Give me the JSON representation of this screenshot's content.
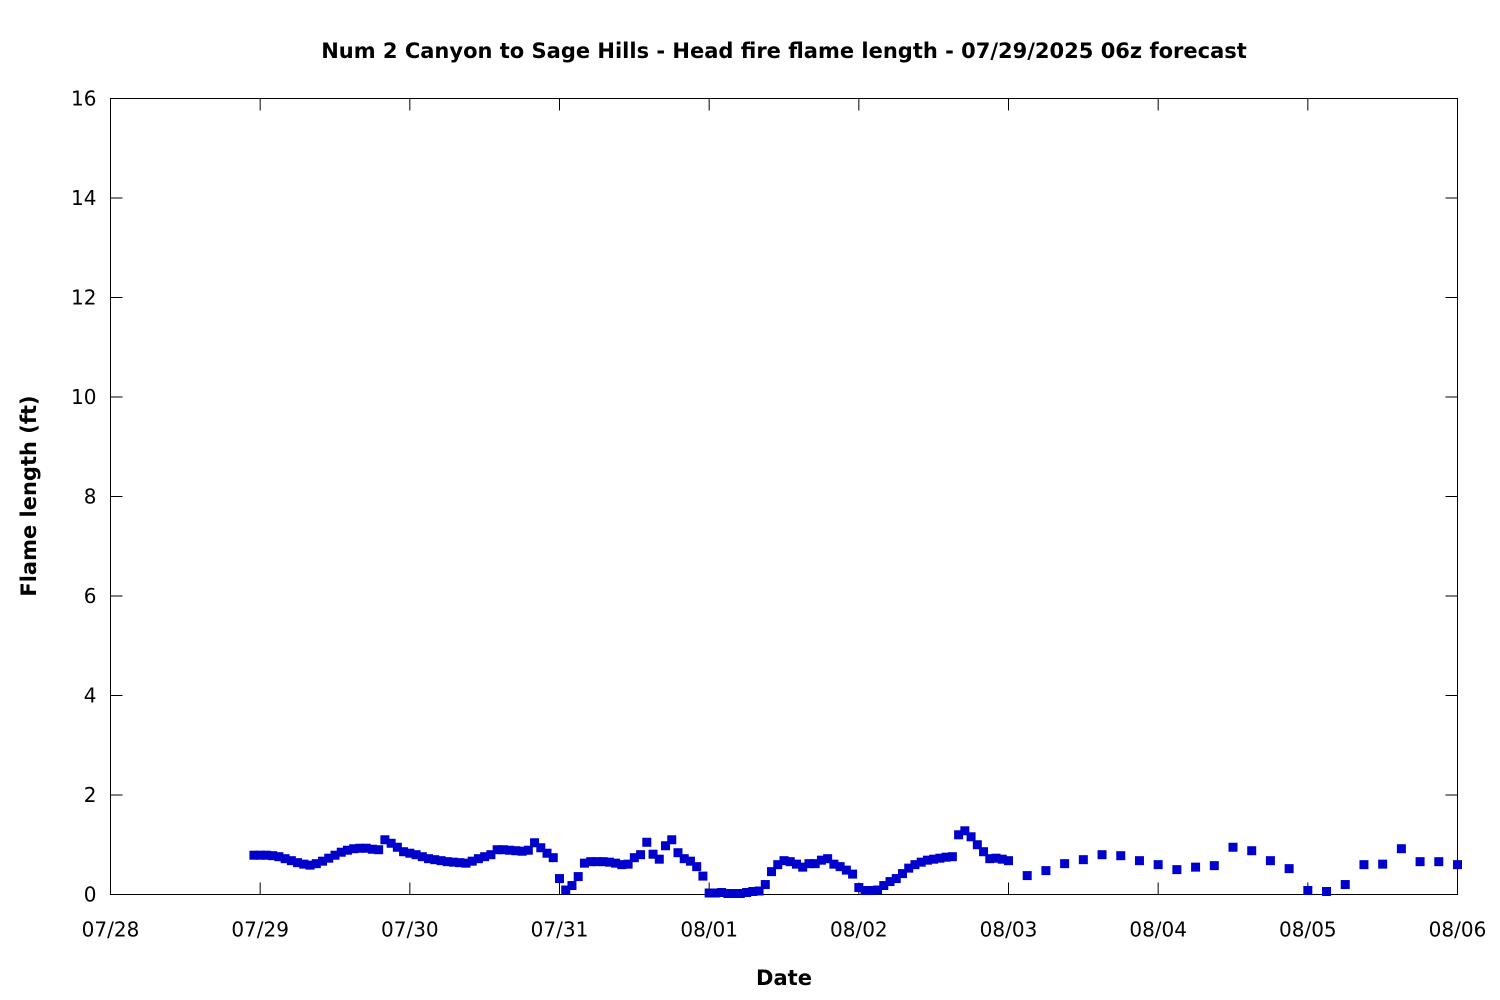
{
  "chart_data": {
    "type": "scatter",
    "title": "Num 2 Canyon to Sage Hills - Head fire flame length - 07/29/2025 06z forecast",
    "xlabel": "Date",
    "ylabel": "Flame length (ft)",
    "ylim": [
      0,
      16
    ],
    "yticks": [
      "0",
      "2",
      "4",
      "6",
      "8",
      "10",
      "12",
      "14",
      "16"
    ],
    "xlim": [
      "2025-07-28T00:00",
      "2025-08-06T00:00"
    ],
    "xticks": [
      "07/28",
      "07/29",
      "07/30",
      "07/31",
      "08/01",
      "08/02",
      "08/03",
      "08/04",
      "08/05",
      "08/06"
    ],
    "grid": false,
    "marker_color": "#0000cc",
    "series": [
      {
        "points": [
          [
            "2025-07-28T23:00",
            0.79
          ],
          [
            "2025-07-29T00:00",
            0.79
          ],
          [
            "2025-07-29T01:00",
            0.79
          ],
          [
            "2025-07-29T02:00",
            0.78
          ],
          [
            "2025-07-29T03:00",
            0.76
          ],
          [
            "2025-07-29T04:00",
            0.72
          ],
          [
            "2025-07-29T05:00",
            0.68
          ],
          [
            "2025-07-29T06:00",
            0.64
          ],
          [
            "2025-07-29T07:00",
            0.61
          ],
          [
            "2025-07-29T08:00",
            0.59
          ],
          [
            "2025-07-29T09:00",
            0.62
          ],
          [
            "2025-07-29T10:00",
            0.67
          ],
          [
            "2025-07-29T11:00",
            0.73
          ],
          [
            "2025-07-29T12:00",
            0.79
          ],
          [
            "2025-07-29T13:00",
            0.85
          ],
          [
            "2025-07-29T14:00",
            0.89
          ],
          [
            "2025-07-29T15:00",
            0.92
          ],
          [
            "2025-07-29T16:00",
            0.93
          ],
          [
            "2025-07-29T17:00",
            0.93
          ],
          [
            "2025-07-29T18:00",
            0.91
          ],
          [
            "2025-07-29T19:00",
            0.9
          ],
          [
            "2025-07-29T20:00",
            1.1
          ],
          [
            "2025-07-29T21:00",
            1.03
          ],
          [
            "2025-07-29T22:00",
            0.95
          ],
          [
            "2025-07-29T23:00",
            0.86
          ],
          [
            "2025-07-30T00:00",
            0.83
          ],
          [
            "2025-07-30T01:00",
            0.8
          ],
          [
            "2025-07-30T02:00",
            0.76
          ],
          [
            "2025-07-30T03:00",
            0.72
          ],
          [
            "2025-07-30T04:00",
            0.7
          ],
          [
            "2025-07-30T05:00",
            0.68
          ],
          [
            "2025-07-30T06:00",
            0.66
          ],
          [
            "2025-07-30T07:00",
            0.65
          ],
          [
            "2025-07-30T08:00",
            0.64
          ],
          [
            "2025-07-30T09:00",
            0.63
          ],
          [
            "2025-07-30T10:00",
            0.67
          ],
          [
            "2025-07-30T11:00",
            0.72
          ],
          [
            "2025-07-30T12:00",
            0.76
          ],
          [
            "2025-07-30T13:00",
            0.8
          ],
          [
            "2025-07-30T14:00",
            0.9
          ],
          [
            "2025-07-30T15:00",
            0.9
          ],
          [
            "2025-07-30T16:00",
            0.89
          ],
          [
            "2025-07-30T17:00",
            0.88
          ],
          [
            "2025-07-30T18:00",
            0.87
          ],
          [
            "2025-07-30T19:00",
            0.89
          ],
          [
            "2025-07-30T20:00",
            1.04
          ],
          [
            "2025-07-30T21:00",
            0.94
          ],
          [
            "2025-07-30T22:00",
            0.83
          ],
          [
            "2025-07-30T23:00",
            0.74
          ],
          [
            "2025-07-31T00:00",
            0.32
          ],
          [
            "2025-07-31T01:00",
            0.09
          ],
          [
            "2025-07-31T02:00",
            0.18
          ],
          [
            "2025-07-31T03:00",
            0.36
          ],
          [
            "2025-07-31T04:00",
            0.63
          ],
          [
            "2025-07-31T05:00",
            0.66
          ],
          [
            "2025-07-31T06:00",
            0.66
          ],
          [
            "2025-07-31T07:00",
            0.66
          ],
          [
            "2025-07-31T08:00",
            0.65
          ],
          [
            "2025-07-31T09:00",
            0.63
          ],
          [
            "2025-07-31T10:00",
            0.6
          ],
          [
            "2025-07-31T11:00",
            0.61
          ],
          [
            "2025-07-31T12:00",
            0.74
          ],
          [
            "2025-07-31T13:00",
            0.8
          ],
          [
            "2025-07-31T14:00",
            1.05
          ],
          [
            "2025-07-31T15:00",
            0.81
          ],
          [
            "2025-07-31T16:00",
            0.71
          ],
          [
            "2025-07-31T17:00",
            0.98
          ],
          [
            "2025-07-31T18:00",
            1.1
          ],
          [
            "2025-07-31T19:00",
            0.84
          ],
          [
            "2025-07-31T20:00",
            0.72
          ],
          [
            "2025-07-31T21:00",
            0.67
          ],
          [
            "2025-07-31T22:00",
            0.56
          ],
          [
            "2025-07-31T23:00",
            0.37
          ],
          [
            "2025-08-01T00:00",
            0.03
          ],
          [
            "2025-08-01T01:00",
            0.03
          ],
          [
            "2025-08-01T02:00",
            0.04
          ],
          [
            "2025-08-01T03:00",
            0.02
          ],
          [
            "2025-08-01T04:00",
            0.02
          ],
          [
            "2025-08-01T05:00",
            0.02
          ],
          [
            "2025-08-01T06:00",
            0.04
          ],
          [
            "2025-08-01T07:00",
            0.06
          ],
          [
            "2025-08-01T08:00",
            0.07
          ],
          [
            "2025-08-01T09:00",
            0.2
          ],
          [
            "2025-08-01T10:00",
            0.46
          ],
          [
            "2025-08-01T11:00",
            0.6
          ],
          [
            "2025-08-01T12:00",
            0.68
          ],
          [
            "2025-08-01T13:00",
            0.66
          ],
          [
            "2025-08-01T14:00",
            0.61
          ],
          [
            "2025-08-01T15:00",
            0.55
          ],
          [
            "2025-08-01T16:00",
            0.62
          ],
          [
            "2025-08-01T17:00",
            0.62
          ],
          [
            "2025-08-01T18:00",
            0.69
          ],
          [
            "2025-08-01T19:00",
            0.72
          ],
          [
            "2025-08-01T20:00",
            0.61
          ],
          [
            "2025-08-01T21:00",
            0.56
          ],
          [
            "2025-08-01T22:00",
            0.49
          ],
          [
            "2025-08-01T23:00",
            0.41
          ],
          [
            "2025-08-02T00:00",
            0.14
          ],
          [
            "2025-08-02T01:00",
            0.08
          ],
          [
            "2025-08-02T02:00",
            0.08
          ],
          [
            "2025-08-02T03:00",
            0.09
          ],
          [
            "2025-08-02T04:00",
            0.18
          ],
          [
            "2025-08-02T05:00",
            0.26
          ],
          [
            "2025-08-02T06:00",
            0.32
          ],
          [
            "2025-08-02T07:00",
            0.42
          ],
          [
            "2025-08-02T08:00",
            0.53
          ],
          [
            "2025-08-02T09:00",
            0.6
          ],
          [
            "2025-08-02T10:00",
            0.65
          ],
          [
            "2025-08-02T11:00",
            0.69
          ],
          [
            "2025-08-02T12:00",
            0.71
          ],
          [
            "2025-08-02T13:00",
            0.73
          ],
          [
            "2025-08-02T14:00",
            0.75
          ],
          [
            "2025-08-02T15:00",
            0.76
          ],
          [
            "2025-08-02T16:00",
            1.2
          ],
          [
            "2025-08-02T17:00",
            1.28
          ],
          [
            "2025-08-02T18:00",
            1.16
          ],
          [
            "2025-08-02T19:00",
            1.0
          ],
          [
            "2025-08-02T20:00",
            0.86
          ],
          [
            "2025-08-02T21:00",
            0.72
          ],
          [
            "2025-08-02T22:00",
            0.73
          ],
          [
            "2025-08-02T23:00",
            0.71
          ],
          [
            "2025-08-03T00:00",
            0.68
          ],
          [
            "2025-08-03T03:00",
            0.38
          ],
          [
            "2025-08-03T06:00",
            0.48
          ],
          [
            "2025-08-03T09:00",
            0.62
          ],
          [
            "2025-08-03T12:00",
            0.7
          ],
          [
            "2025-08-03T15:00",
            0.8
          ],
          [
            "2025-08-03T18:00",
            0.78
          ],
          [
            "2025-08-03T21:00",
            0.68
          ],
          [
            "2025-08-04T00:00",
            0.6
          ],
          [
            "2025-08-04T03:00",
            0.5
          ],
          [
            "2025-08-04T06:00",
            0.55
          ],
          [
            "2025-08-04T09:00",
            0.58
          ],
          [
            "2025-08-04T12:00",
            0.95
          ],
          [
            "2025-08-04T15:00",
            0.88
          ],
          [
            "2025-08-04T18:00",
            0.68
          ],
          [
            "2025-08-04T21:00",
            0.52
          ],
          [
            "2025-08-05T00:00",
            0.08
          ],
          [
            "2025-08-05T03:00",
            0.06
          ],
          [
            "2025-08-05T06:00",
            0.2
          ],
          [
            "2025-08-05T09:00",
            0.6
          ],
          [
            "2025-08-05T12:00",
            0.61
          ],
          [
            "2025-08-05T15:00",
            0.92
          ],
          [
            "2025-08-05T18:00",
            0.66
          ],
          [
            "2025-08-05T21:00",
            0.66
          ],
          [
            "2025-08-06T00:00",
            0.6
          ]
        ]
      }
    ]
  }
}
